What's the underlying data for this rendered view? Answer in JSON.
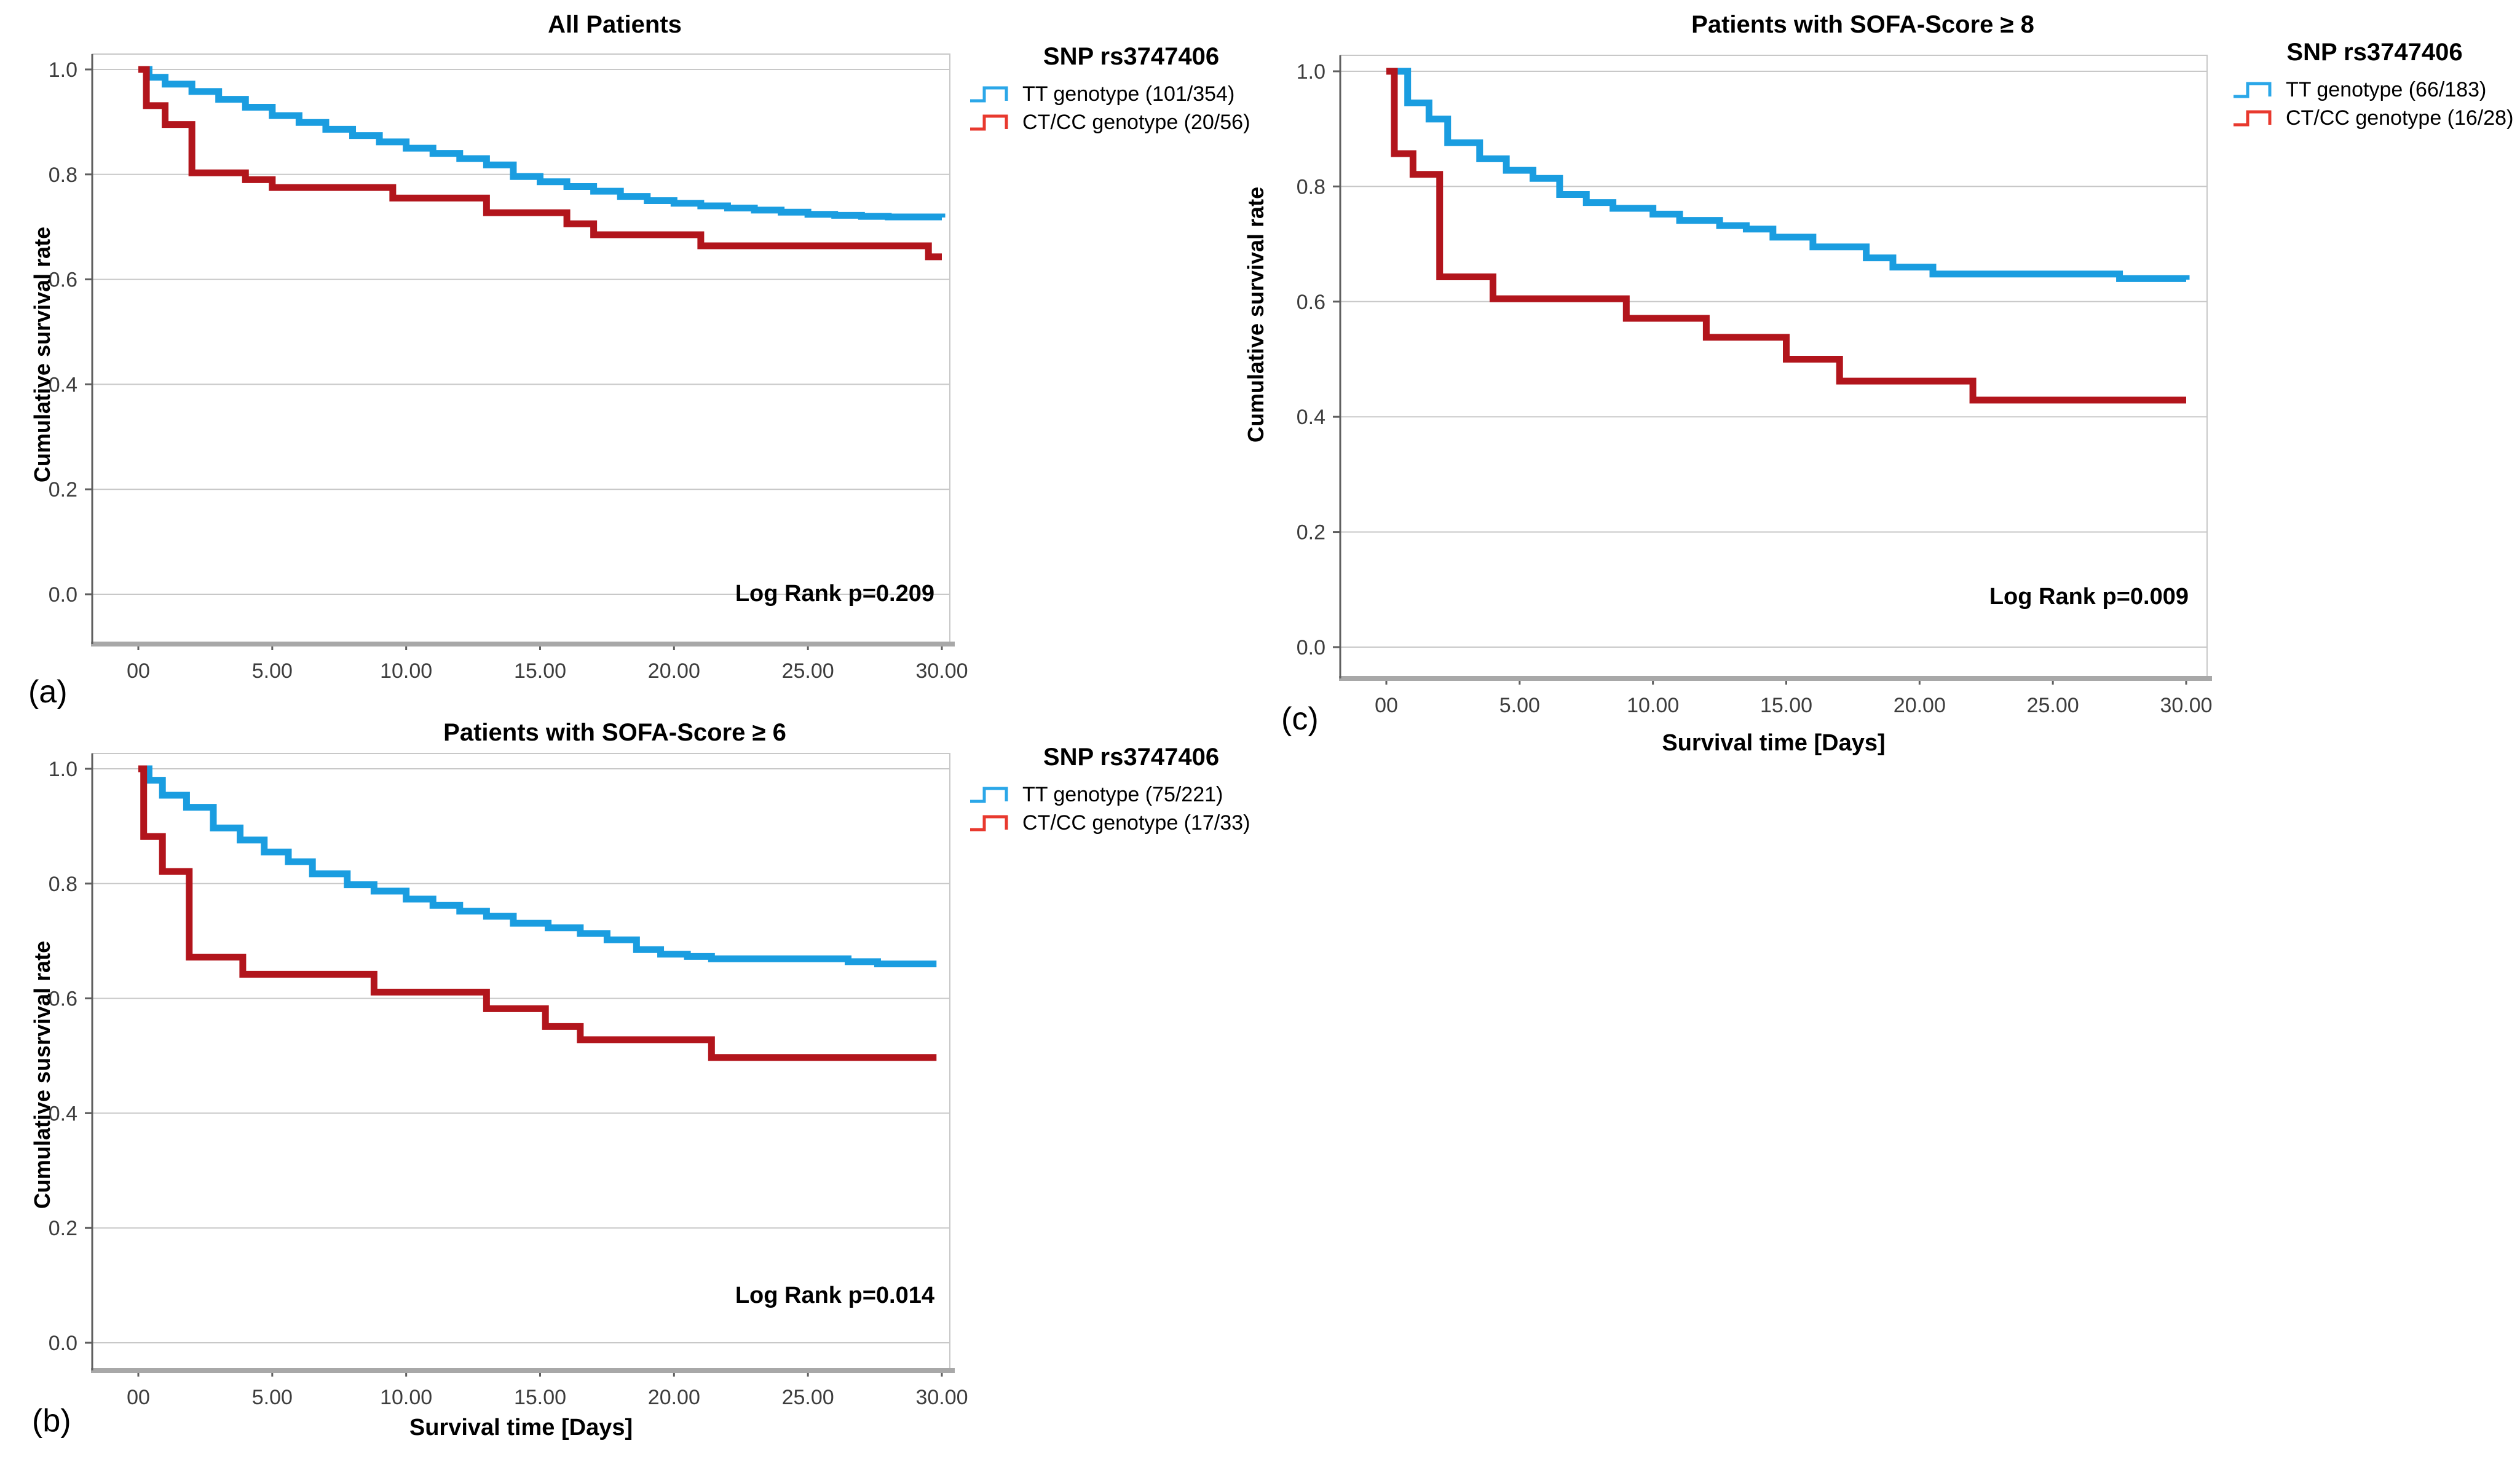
{
  "colors": {
    "grid": "#c8c8c8",
    "axis": "#5f5f5f",
    "axis_bottom": "#a8a8a8",
    "tick_text": "#3d3d3d",
    "text": "#000000",
    "tt_curve": "#1a9de0",
    "tt_legend": "#2ba7e8",
    "ctcc_curve": "#b2151c",
    "ctcc_legend": "#e8392e"
  },
  "chart_data": [
    {
      "id": "a",
      "panel_label": "(a)",
      "type": "line",
      "subtype": "kaplan-meier-step",
      "title": "All Patients",
      "ylabel": "Cumulative survival rate",
      "xlabel": "",
      "annotation": "Log Rank p=0.209",
      "legend_title": "SNP rs3747406",
      "legend_position": "right-top",
      "grid": true,
      "xlim": [
        0,
        30
      ],
      "ylim": [
        0.0,
        1.0
      ],
      "x_tick_values": [
        0,
        5,
        10,
        15,
        20,
        25,
        30
      ],
      "x_tick_labels": [
        "00",
        "5.00",
        "10.00",
        "15.00",
        "20.00",
        "25.00",
        "30.00"
      ],
      "y_tick_values": [
        1.0,
        0.8,
        0.6,
        0.4,
        0.2,
        0.0
      ],
      "y_tick_labels": [
        "1.0",
        "0.8",
        "0.6",
        "0.4",
        "0.2",
        "0.0"
      ],
      "series": [
        {
          "name": "TT genotype (101/354)",
          "color": "#1a9de0",
          "legend_color": "#2ba7e8",
          "steps": [
            [
              0,
              1
            ],
            [
              0.4,
              0.985
            ],
            [
              1,
              0.972
            ],
            [
              2,
              0.958
            ],
            [
              3,
              0.943
            ],
            [
              4,
              0.928
            ],
            [
              5,
              0.912
            ],
            [
              6,
              0.899
            ],
            [
              7,
              0.886
            ],
            [
              8,
              0.874
            ],
            [
              9,
              0.862
            ],
            [
              10,
              0.85
            ],
            [
              11,
              0.84
            ],
            [
              12,
              0.83
            ],
            [
              13,
              0.818
            ],
            [
              14,
              0.796
            ],
            [
              15,
              0.786
            ],
            [
              16,
              0.777
            ],
            [
              17,
              0.768
            ],
            [
              18,
              0.758
            ],
            [
              19,
              0.75
            ],
            [
              20,
              0.745
            ],
            [
              21,
              0.74
            ],
            [
              22,
              0.736
            ],
            [
              23,
              0.732
            ],
            [
              24,
              0.728
            ],
            [
              25,
              0.724
            ],
            [
              26,
              0.722
            ],
            [
              27,
              0.72
            ],
            [
              28,
              0.719
            ],
            [
              30,
              0.718
            ]
          ]
        },
        {
          "name": "CT/CC genotype (20/56)",
          "color": "#b2151c",
          "legend_color": "#e8392e",
          "steps": [
            [
              0,
              1
            ],
            [
              0.3,
              0.931
            ],
            [
              1,
              0.895
            ],
            [
              2,
              0.803
            ],
            [
              4,
              0.79
            ],
            [
              5,
              0.775
            ],
            [
              9.5,
              0.755
            ],
            [
              13,
              0.727
            ],
            [
              16,
              0.706
            ],
            [
              17,
              0.685
            ],
            [
              21,
              0.664
            ],
            [
              29.5,
              0.643
            ],
            [
              30,
              0.643
            ]
          ]
        }
      ]
    },
    {
      "id": "b",
      "panel_label": "(b)",
      "type": "line",
      "subtype": "kaplan-meier-step",
      "title": "Patients with SOFA-Score ≥ 6",
      "ylabel": "Cumulative susrvival rate",
      "xlabel": "Survival time [Days]",
      "annotation": "Log Rank p=0.014",
      "legend_title": "SNP rs3747406",
      "legend_position": "right-top",
      "grid": true,
      "xlim": [
        0,
        30
      ],
      "ylim": [
        0.0,
        1.0
      ],
      "x_tick_values": [
        0,
        5,
        10,
        15,
        20,
        25,
        30
      ],
      "x_tick_labels": [
        "00",
        "5.00",
        "10.00",
        "15.00",
        "20.00",
        "25.00",
        "30.00"
      ],
      "y_tick_values": [
        1.0,
        0.8,
        0.6,
        0.4,
        0.2,
        0.0
      ],
      "y_tick_labels": [
        "1.0",
        "0.8",
        "0.6",
        "0.4",
        "0.2",
        "0.0"
      ],
      "series": [
        {
          "name": "TT genotype (75/221)",
          "color": "#1a9de0",
          "legend_color": "#2ba7e8",
          "steps": [
            [
              0,
              1
            ],
            [
              0.4,
              0.98
            ],
            [
              0.9,
              0.954
            ],
            [
              1.8,
              0.933
            ],
            [
              2.8,
              0.897
            ],
            [
              3.8,
              0.876
            ],
            [
              4.7,
              0.855
            ],
            [
              5.6,
              0.838
            ],
            [
              6.5,
              0.817
            ],
            [
              7.8,
              0.798
            ],
            [
              8.8,
              0.787
            ],
            [
              10,
              0.773
            ],
            [
              11,
              0.762
            ],
            [
              12,
              0.752
            ],
            [
              13,
              0.743
            ],
            [
              14,
              0.731
            ],
            [
              15.3,
              0.723
            ],
            [
              16.5,
              0.713
            ],
            [
              17.5,
              0.702
            ],
            [
              18.6,
              0.685
            ],
            [
              19.5,
              0.677
            ],
            [
              20.5,
              0.673
            ],
            [
              21.4,
              0.669
            ],
            [
              26.5,
              0.664
            ],
            [
              27.6,
              0.66
            ],
            [
              29.8,
              0.66
            ]
          ]
        },
        {
          "name": "CT/CC genotype (17/33)",
          "color": "#b2151c",
          "legend_color": "#e8392e",
          "steps": [
            [
              0,
              1
            ],
            [
              0.2,
              0.882
            ],
            [
              0.9,
              0.821
            ],
            [
              1.9,
              0.672
            ],
            [
              3.9,
              0.642
            ],
            [
              8.8,
              0.611
            ],
            [
              13,
              0.582
            ],
            [
              15.2,
              0.551
            ],
            [
              16.5,
              0.528
            ],
            [
              21.4,
              0.497
            ],
            [
              29.8,
              0.497
            ]
          ]
        }
      ]
    },
    {
      "id": "c",
      "panel_label": "(c)",
      "type": "line",
      "subtype": "kaplan-meier-step",
      "title": "Patients with SOFA-Score ≥ 8",
      "ylabel": "Cumulative survival rate",
      "xlabel": "Survival time [Days]",
      "annotation": "Log Rank p=0.009",
      "legend_title": "SNP rs3747406",
      "legend_position": "right-top",
      "grid": true,
      "xlim": [
        0,
        30
      ],
      "ylim": [
        0.0,
        1.0
      ],
      "x_tick_values": [
        0,
        5,
        10,
        15,
        20,
        25,
        30
      ],
      "x_tick_labels": [
        "00",
        "5.00",
        "10.00",
        "15.00",
        "20.00",
        "25.00",
        "30.00"
      ],
      "y_tick_values": [
        1.0,
        0.8,
        0.6,
        0.4,
        0.2,
        0.0
      ],
      "y_tick_labels": [
        "1.0",
        "0.8",
        "0.6",
        "0.4",
        "0.2",
        "0.0"
      ],
      "series": [
        {
          "name": "TT genotype (66/183)",
          "color": "#1a9de0",
          "legend_color": "#2ba7e8",
          "steps": [
            [
              0,
              1
            ],
            [
              0.8,
              0.945
            ],
            [
              1.6,
              0.917
            ],
            [
              2.3,
              0.876
            ],
            [
              3.5,
              0.848
            ],
            [
              4.5,
              0.828
            ],
            [
              5.5,
              0.814
            ],
            [
              6.5,
              0.786
            ],
            [
              7.5,
              0.772
            ],
            [
              8.5,
              0.762
            ],
            [
              10,
              0.752
            ],
            [
              11,
              0.741
            ],
            [
              12.5,
              0.732
            ],
            [
              13.5,
              0.726
            ],
            [
              14.5,
              0.712
            ],
            [
              16,
              0.695
            ],
            [
              18,
              0.676
            ],
            [
              19,
              0.66
            ],
            [
              20.5,
              0.648
            ],
            [
              27.5,
              0.64
            ],
            [
              30,
              0.638
            ]
          ]
        },
        {
          "name": "CT/CC genotype (16/28)",
          "color": "#b2151c",
          "legend_color": "#e8392e",
          "steps": [
            [
              0,
              1
            ],
            [
              0.3,
              0.857
            ],
            [
              1,
              0.821
            ],
            [
              2,
              0.643
            ],
            [
              4,
              0.605
            ],
            [
              9,
              0.571
            ],
            [
              12,
              0.538
            ],
            [
              15,
              0.5
            ],
            [
              17,
              0.462
            ],
            [
              22,
              0.429
            ],
            [
              30,
              0.429
            ]
          ]
        }
      ]
    }
  ]
}
